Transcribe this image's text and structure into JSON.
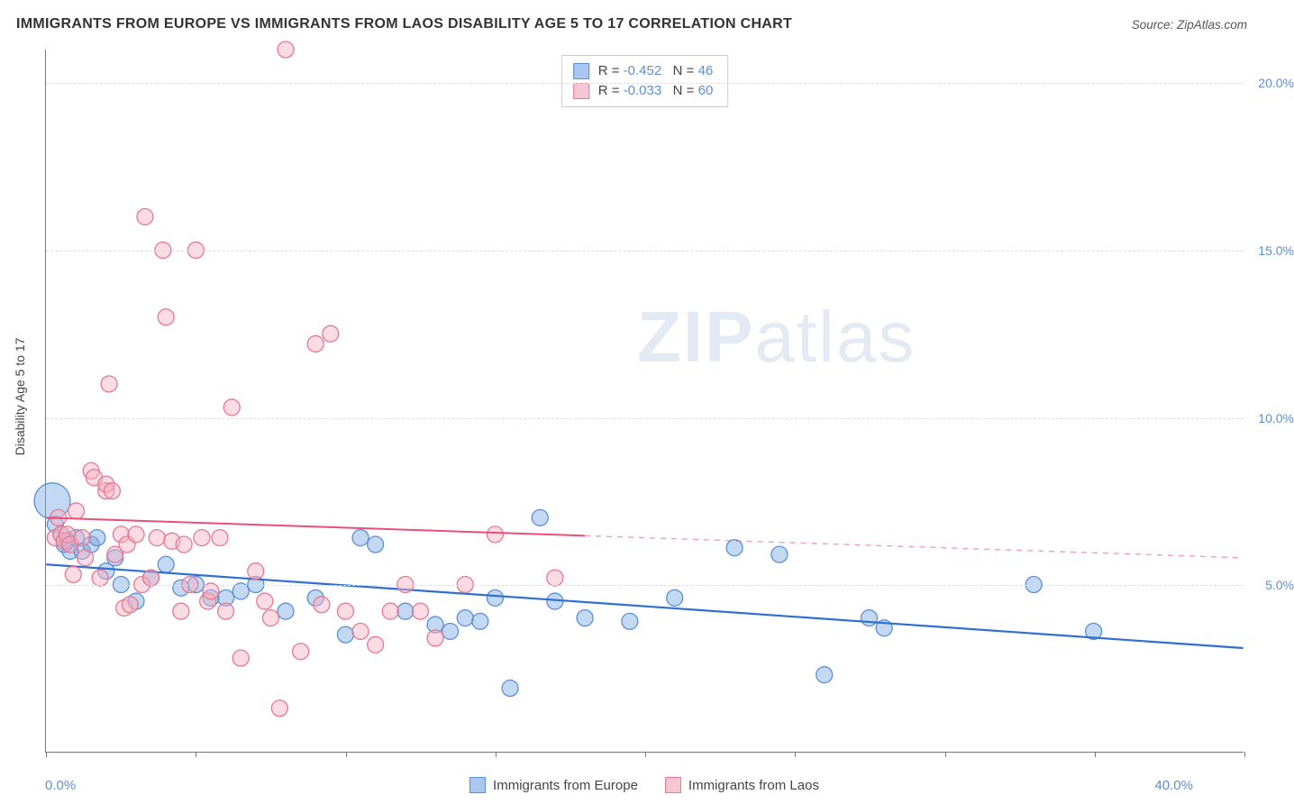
{
  "title": "IMMIGRANTS FROM EUROPE VS IMMIGRANTS FROM LAOS DISABILITY AGE 5 TO 17 CORRELATION CHART",
  "source": "Source: ZipAtlas.com",
  "y_axis_label": "Disability Age 5 to 17",
  "watermark_zip": "ZIP",
  "watermark_atlas": "atlas",
  "chart": {
    "type": "scatter",
    "background_color": "#ffffff",
    "grid_color": "#dddddd",
    "axis_color": "#777777",
    "xlim": [
      0,
      40
    ],
    "ylim": [
      0,
      21
    ],
    "x_tick_positions": [
      0,
      5,
      10,
      15,
      20,
      25,
      30,
      35,
      40
    ],
    "y_ticks": [
      {
        "v": 5,
        "label": "5.0%"
      },
      {
        "v": 10,
        "label": "10.0%"
      },
      {
        "v": 15,
        "label": "15.0%"
      },
      {
        "v": 20,
        "label": "20.0%"
      }
    ],
    "x_left_label": "0.0%",
    "x_right_label": "40.0%",
    "legend_top": [
      {
        "r_label": "R =",
        "r": "-0.452",
        "n_label": "N =",
        "n": "46",
        "swatch_fill": "#a9c7ef",
        "swatch_stroke": "#5b8fd6"
      },
      {
        "r_label": "R =",
        "r": "-0.033",
        "n_label": "N =",
        "n": "60",
        "swatch_fill": "#f7c6d3",
        "swatch_stroke": "#e7788f"
      }
    ],
    "legend_bottom": [
      {
        "label": "Immigrants from Europe",
        "swatch_fill": "#a9c7ef",
        "swatch_stroke": "#5b8fd6"
      },
      {
        "label": "Immigrants from Laos",
        "swatch_fill": "#f7c6d3",
        "swatch_stroke": "#e7788f"
      }
    ],
    "series": [
      {
        "name": "europe",
        "marker_fill": "rgba(123,168,227,0.45)",
        "marker_stroke": "#5b8fd6",
        "marker_r": 9,
        "trend": {
          "x1": 0,
          "y1": 5.6,
          "x2": 40,
          "y2": 3.1,
          "solid_end_x": 40,
          "color": "#2f6fd0",
          "width": 2.2
        },
        "points": [
          {
            "x": 0.2,
            "y": 7.5,
            "r": 20
          },
          {
            "x": 0.3,
            "y": 6.8
          },
          {
            "x": 0.5,
            "y": 6.5
          },
          {
            "x": 0.6,
            "y": 6.2
          },
          {
            "x": 0.7,
            "y": 6.3
          },
          {
            "x": 0.8,
            "y": 6.0
          },
          {
            "x": 1.0,
            "y": 6.4
          },
          {
            "x": 1.2,
            "y": 6.0
          },
          {
            "x": 1.5,
            "y": 6.2
          },
          {
            "x": 1.7,
            "y": 6.4
          },
          {
            "x": 2.0,
            "y": 5.4
          },
          {
            "x": 2.3,
            "y": 5.8
          },
          {
            "x": 2.5,
            "y": 5.0
          },
          {
            "x": 3.0,
            "y": 4.5
          },
          {
            "x": 3.5,
            "y": 5.2
          },
          {
            "x": 4.0,
            "y": 5.6
          },
          {
            "x": 4.5,
            "y": 4.9
          },
          {
            "x": 5.0,
            "y": 5.0
          },
          {
            "x": 5.5,
            "y": 4.6
          },
          {
            "x": 6.0,
            "y": 4.6
          },
          {
            "x": 6.5,
            "y": 4.8
          },
          {
            "x": 7.0,
            "y": 5.0
          },
          {
            "x": 8.0,
            "y": 4.2
          },
          {
            "x": 9.0,
            "y": 4.6
          },
          {
            "x": 10.0,
            "y": 3.5
          },
          {
            "x": 10.5,
            "y": 6.4
          },
          {
            "x": 11.0,
            "y": 6.2
          },
          {
            "x": 12.0,
            "y": 4.2
          },
          {
            "x": 13.0,
            "y": 3.8
          },
          {
            "x": 13.5,
            "y": 3.6
          },
          {
            "x": 14.0,
            "y": 4.0
          },
          {
            "x": 14.5,
            "y": 3.9
          },
          {
            "x": 15.0,
            "y": 4.6
          },
          {
            "x": 15.5,
            "y": 1.9
          },
          {
            "x": 16.5,
            "y": 7.0
          },
          {
            "x": 17.0,
            "y": 4.5
          },
          {
            "x": 18.0,
            "y": 4.0
          },
          {
            "x": 19.5,
            "y": 3.9
          },
          {
            "x": 21.0,
            "y": 4.6
          },
          {
            "x": 23.0,
            "y": 6.1
          },
          {
            "x": 24.5,
            "y": 5.9
          },
          {
            "x": 26.0,
            "y": 2.3
          },
          {
            "x": 27.5,
            "y": 4.0
          },
          {
            "x": 28.0,
            "y": 3.7
          },
          {
            "x": 33.0,
            "y": 5.0
          },
          {
            "x": 35.0,
            "y": 3.6
          }
        ]
      },
      {
        "name": "laos",
        "marker_fill": "rgba(247,175,195,0.45)",
        "marker_stroke": "#e7788f",
        "marker_r": 9,
        "trend": {
          "x1": 0,
          "y1": 7.0,
          "x2": 40,
          "y2": 5.8,
          "solid_end_x": 18,
          "color": "#e94f78",
          "width": 2.0
        },
        "points": [
          {
            "x": 0.3,
            "y": 6.4
          },
          {
            "x": 0.4,
            "y": 7.0
          },
          {
            "x": 0.5,
            "y": 6.5
          },
          {
            "x": 0.6,
            "y": 6.3
          },
          {
            "x": 0.7,
            "y": 6.5
          },
          {
            "x": 0.8,
            "y": 6.2
          },
          {
            "x": 0.9,
            "y": 5.3
          },
          {
            "x": 1.0,
            "y": 7.2
          },
          {
            "x": 1.2,
            "y": 6.4
          },
          {
            "x": 1.3,
            "y": 5.8
          },
          {
            "x": 1.5,
            "y": 8.4
          },
          {
            "x": 1.6,
            "y": 8.2
          },
          {
            "x": 1.8,
            "y": 5.2
          },
          {
            "x": 2.0,
            "y": 7.8
          },
          {
            "x": 2.0,
            "y": 8.0
          },
          {
            "x": 2.1,
            "y": 11.0
          },
          {
            "x": 2.2,
            "y": 7.8
          },
          {
            "x": 2.3,
            "y": 5.9
          },
          {
            "x": 2.5,
            "y": 6.5
          },
          {
            "x": 2.6,
            "y": 4.3
          },
          {
            "x": 2.7,
            "y": 6.2
          },
          {
            "x": 2.8,
            "y": 4.4
          },
          {
            "x": 3.0,
            "y": 6.5
          },
          {
            "x": 3.2,
            "y": 5.0
          },
          {
            "x": 3.3,
            "y": 16.0
          },
          {
            "x": 3.5,
            "y": 5.2
          },
          {
            "x": 3.7,
            "y": 6.4
          },
          {
            "x": 3.9,
            "y": 15.0
          },
          {
            "x": 4.0,
            "y": 13.0
          },
          {
            "x": 4.2,
            "y": 6.3
          },
          {
            "x": 4.5,
            "y": 4.2
          },
          {
            "x": 4.6,
            "y": 6.2
          },
          {
            "x": 4.8,
            "y": 5.0
          },
          {
            "x": 5.0,
            "y": 15.0
          },
          {
            "x": 5.2,
            "y": 6.4
          },
          {
            "x": 5.4,
            "y": 4.5
          },
          {
            "x": 5.5,
            "y": 4.8
          },
          {
            "x": 5.8,
            "y": 6.4
          },
          {
            "x": 6.0,
            "y": 4.2
          },
          {
            "x": 6.2,
            "y": 10.3
          },
          {
            "x": 6.5,
            "y": 2.8
          },
          {
            "x": 7.0,
            "y": 5.4
          },
          {
            "x": 7.3,
            "y": 4.5
          },
          {
            "x": 7.5,
            "y": 4.0
          },
          {
            "x": 7.8,
            "y": 1.3
          },
          {
            "x": 8.0,
            "y": 21.0
          },
          {
            "x": 8.5,
            "y": 3.0
          },
          {
            "x": 9.0,
            "y": 12.2
          },
          {
            "x": 9.2,
            "y": 4.4
          },
          {
            "x": 9.5,
            "y": 12.5
          },
          {
            "x": 10.0,
            "y": 4.2
          },
          {
            "x": 10.5,
            "y": 3.6
          },
          {
            "x": 11.0,
            "y": 3.2
          },
          {
            "x": 11.5,
            "y": 4.2
          },
          {
            "x": 12.0,
            "y": 5.0
          },
          {
            "x": 12.5,
            "y": 4.2
          },
          {
            "x": 13.0,
            "y": 3.4
          },
          {
            "x": 14.0,
            "y": 5.0
          },
          {
            "x": 15.0,
            "y": 6.5
          },
          {
            "x": 17.0,
            "y": 5.2
          }
        ]
      }
    ]
  }
}
